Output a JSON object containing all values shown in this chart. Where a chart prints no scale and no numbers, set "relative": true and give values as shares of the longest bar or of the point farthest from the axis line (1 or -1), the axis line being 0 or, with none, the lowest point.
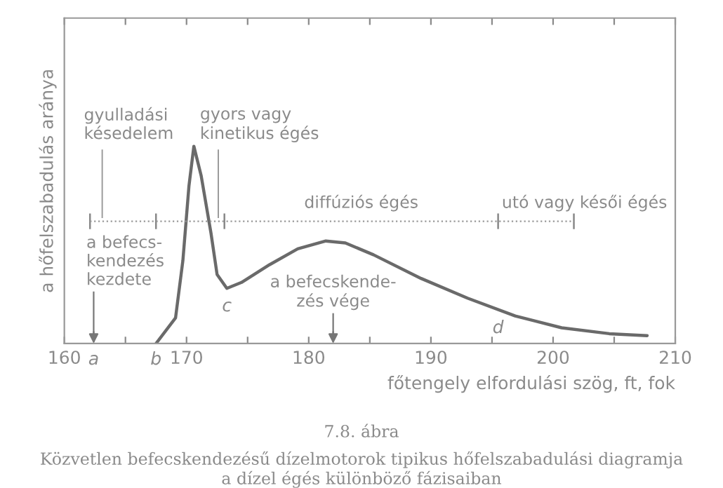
{
  "chart_data": {
    "type": "line",
    "relative": true,
    "xlabel": "főtengely elfordulási szög, ft, fok",
    "ylabel": "a hőfelszabadulás aránya",
    "xlim": [
      160,
      210
    ],
    "xticks": [
      160,
      {
        "value": 165,
        "label": null
      },
      170,
      {
        "value": 175,
        "label": null
      },
      180,
      {
        "value": 185,
        "label": null
      },
      190,
      {
        "value": 195,
        "label": null
      },
      200,
      {
        "value": 205,
        "label": null
      },
      210
    ],
    "grid": false,
    "legend": false,
    "marker": "none",
    "line_style": "solid",
    "series": [
      {
        "color": "#6a6a6a",
        "x": [
          167.5,
          169.1,
          169.7,
          170.2,
          170.6,
          171.2,
          172.0,
          172.5,
          173.3,
          174.5,
          176.8,
          179.1,
          181.4,
          183.0,
          185.3,
          189.2,
          193.0,
          196.9,
          200.7,
          204.6,
          207.7
        ],
        "values": [
          0,
          0.13,
          0.42,
          0.8,
          1.0,
          0.85,
          0.56,
          0.35,
          0.28,
          0.31,
          0.4,
          0.48,
          0.52,
          0.51,
          0.45,
          0.33,
          0.23,
          0.14,
          0.08,
          0.05,
          0.04
        ]
      }
    ],
    "ref_lines": [
      {
        "axis": "x",
        "value": 162.4,
        "label": "a befecs-\nkendezés\nkezdete"
      },
      {
        "axis": "x",
        "value": 182.0,
        "label": "a befecskende-\nzés vége"
      }
    ],
    "annotations": [
      "a",
      "gyulladási\nkésedelem",
      "gyors vagy\nkinetikus égés",
      "diffúziós égés",
      "utó vagy késői égés",
      {
        "text": "b",
        "x": 167.5,
        "y": 0
      },
      {
        "text": "c",
        "x": 173.3,
        "y": 0.28
      },
      {
        "text": "d",
        "x": 195.5,
        "y": 0.17
      },
      "7.8. ábra",
      "Közvetlen befecskendezésű dízelmotorok tipikus hőfelszabadulási diagramja\na dízel égés különböző fázisaiban"
    ]
  }
}
